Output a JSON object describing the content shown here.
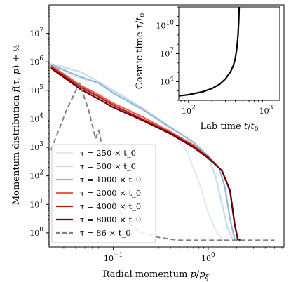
{
  "chart_data": [
    {
      "type": "line",
      "xlabel": "Radial momentum p/p_ξ",
      "ylabel": "Momentum distribution f(τ,p) + ½",
      "xscale": "log",
      "yscale": "log",
      "xlim": [
        0.021,
        6.3
      ],
      "ylim": [
        0.32,
        100000000.0
      ],
      "x_tick_labels": [
        "10^{-1}",
        "10^{0}"
      ],
      "y_tick_labels": [
        "10^{0}",
        "10^{1}",
        "10^{2}",
        "10^{3}",
        "10^{4}",
        "10^{5}",
        "10^{6}",
        "10^{7}"
      ],
      "legend_position": "bottom-left",
      "series": [
        {
          "name": "τ = 250 × t_0",
          "color": "#deebf7",
          "dash": false,
          "x": [
            0.022,
            0.04,
            0.07,
            0.1,
            0.2,
            0.4,
            0.6,
            0.8,
            1.0,
            1.2,
            1.4,
            1.6
          ],
          "y": [
            800000,
            300000,
            180000,
            90000,
            25000,
            4000,
            700,
            60,
            5,
            1.2,
            0.6,
            0.55
          ]
        },
        {
          "name": "τ = 500 × t_0",
          "color": "#c6dbef",
          "dash": false,
          "x": [
            0.022,
            0.045,
            0.07,
            0.1,
            0.2,
            0.4,
            0.7,
            1.0,
            1.2,
            1.4,
            1.6,
            1.8,
            2.0
          ],
          "y": [
            850000,
            450000,
            200000,
            100000,
            25000,
            5000,
            1500,
            500,
            90,
            10,
            1.5,
            0.6,
            0.55
          ]
        },
        {
          "name": "τ = 1000 × t_0",
          "color": "#8fbbda",
          "dash": false,
          "x": [
            0.022,
            0.045,
            0.07,
            0.1,
            0.2,
            0.4,
            0.7,
            1.0,
            1.3,
            1.5,
            1.7,
            1.9,
            2.1
          ],
          "y": [
            800000,
            300000,
            180000,
            80000,
            22000,
            5000,
            1500,
            500,
            200,
            40,
            3,
            0.6,
            0.55
          ]
        },
        {
          "name": "τ = 2000 × t_0",
          "color": "#ef5a43",
          "dash": false,
          "x": [
            0.022,
            0.045,
            0.07,
            0.1,
            0.2,
            0.4,
            0.7,
            1.0,
            1.4,
            1.7,
            1.9,
            2.05,
            2.2
          ],
          "y": [
            750000,
            150000,
            70000,
            35000,
            12000,
            3500,
            1200,
            450,
            150,
            30,
            2,
            0.6,
            0.55
          ]
        },
        {
          "name": "τ = 4000 × t_0",
          "color": "#b51d20",
          "dash": false,
          "x": [
            0.022,
            0.045,
            0.07,
            0.1,
            0.2,
            0.4,
            0.7,
            1.0,
            1.4,
            1.7,
            1.9,
            2.05,
            2.2
          ],
          "y": [
            650000,
            130000,
            60000,
            30000,
            10000,
            3200,
            1100,
            450,
            150,
            30,
            2,
            0.6,
            0.55
          ]
        },
        {
          "name": "τ = 8000 × t_0",
          "color": "#67000d",
          "dash": false,
          "x": [
            0.022,
            0.045,
            0.07,
            0.1,
            0.2,
            0.4,
            0.7,
            1.0,
            1.4,
            1.7,
            1.9,
            2.05,
            2.2
          ],
          "y": [
            600000,
            110000,
            50000,
            25000,
            9000,
            3000,
            1000,
            420,
            150,
            30,
            2,
            0.6,
            0.55
          ]
        },
        {
          "name": "τ = 86 × t_0",
          "color": "#808080",
          "dash": true,
          "x": [
            0.022,
            0.032,
            0.044,
            0.055,
            0.065,
            0.07,
            0.08,
            0.1,
            0.15,
            0.2,
            0.3,
            0.4,
            0.5,
            0.7,
            1.0,
            2.0,
            5.0
          ],
          "y": [
            800,
            20000,
            180000,
            20000,
            2000,
            4000,
            500,
            10,
            2,
            1,
            0.7,
            0.6,
            0.55,
            0.55,
            0.55,
            0.55,
            0.55
          ]
        }
      ]
    },
    {
      "type": "line",
      "xlabel": "Lab time t/t_0",
      "ylabel": "Cosmic time τ/t_0",
      "xscale": "log",
      "yscale": "log",
      "xlim": [
        75,
        1500
      ],
      "ylim": [
        100,
        1000000000000.0
      ],
      "x_tick_labels": [
        "10^{2}",
        "10^{3}"
      ],
      "y_tick_labels": [
        "10^{4}",
        "10^{7}",
        "10^{10}"
      ],
      "series": [
        {
          "color": "#000000",
          "x": [
            75,
            100,
            150,
            200,
            250,
            300,
            350,
            380,
            400,
            420,
            435,
            445,
            450
          ],
          "y": [
            300,
            400,
            800,
            1800,
            5000,
            20000,
            120000,
            600000,
            3000000,
            40000000,
            1000000000,
            50000000000,
            1000000000000
          ]
        }
      ]
    }
  ]
}
